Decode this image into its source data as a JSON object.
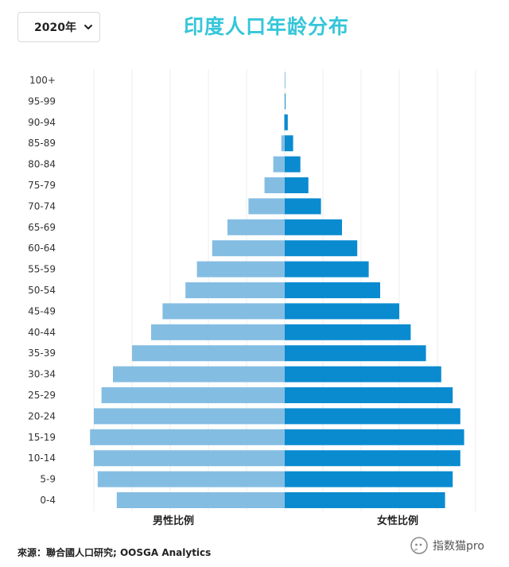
{
  "controls": {
    "year_selected": "2020年"
  },
  "watermark": {
    "text": "指数猫pro",
    "icon": "chat-bubble-icon"
  },
  "colors": {
    "male": "#84bde2",
    "female": "#0a8bd0",
    "title": "#35c6d9",
    "grid": "#ececec"
  },
  "chart_data": {
    "type": "bar",
    "orientation": "horizontal",
    "title": "印度人口年龄分布",
    "source": "來源：聯合國人口研究; OOSGA Analytics",
    "categories": [
      "0-4",
      "5-9",
      "10-14",
      "15-19",
      "20-24",
      "25-29",
      "30-34",
      "35-39",
      "40-44",
      "45-49",
      "50-54",
      "55-59",
      "60-64",
      "65-69",
      "70-74",
      "75-79",
      "80-84",
      "85-89",
      "90-94",
      "95-99",
      "100+"
    ],
    "series": [
      {
        "name": "男性比例",
        "side": "left",
        "values": [
          4.4,
          4.9,
          5.0,
          5.1,
          5.0,
          4.8,
          4.5,
          4.0,
          3.5,
          3.2,
          2.6,
          2.3,
          1.9,
          1.5,
          0.95,
          0.53,
          0.3,
          0.09,
          0.02,
          0.0,
          0.0
        ]
      },
      {
        "name": "女性比例",
        "side": "right",
        "values": [
          4.2,
          4.4,
          4.6,
          4.7,
          4.6,
          4.4,
          4.1,
          3.7,
          3.3,
          3.0,
          2.5,
          2.2,
          1.9,
          1.5,
          0.95,
          0.62,
          0.41,
          0.22,
          0.08,
          0.02,
          0.01
        ]
      }
    ],
    "xlabel_left": "男性比例",
    "xlabel_right": "女性比例",
    "xlim": [
      -5.5,
      5.5
    ],
    "grid": true,
    "legend": "none"
  }
}
